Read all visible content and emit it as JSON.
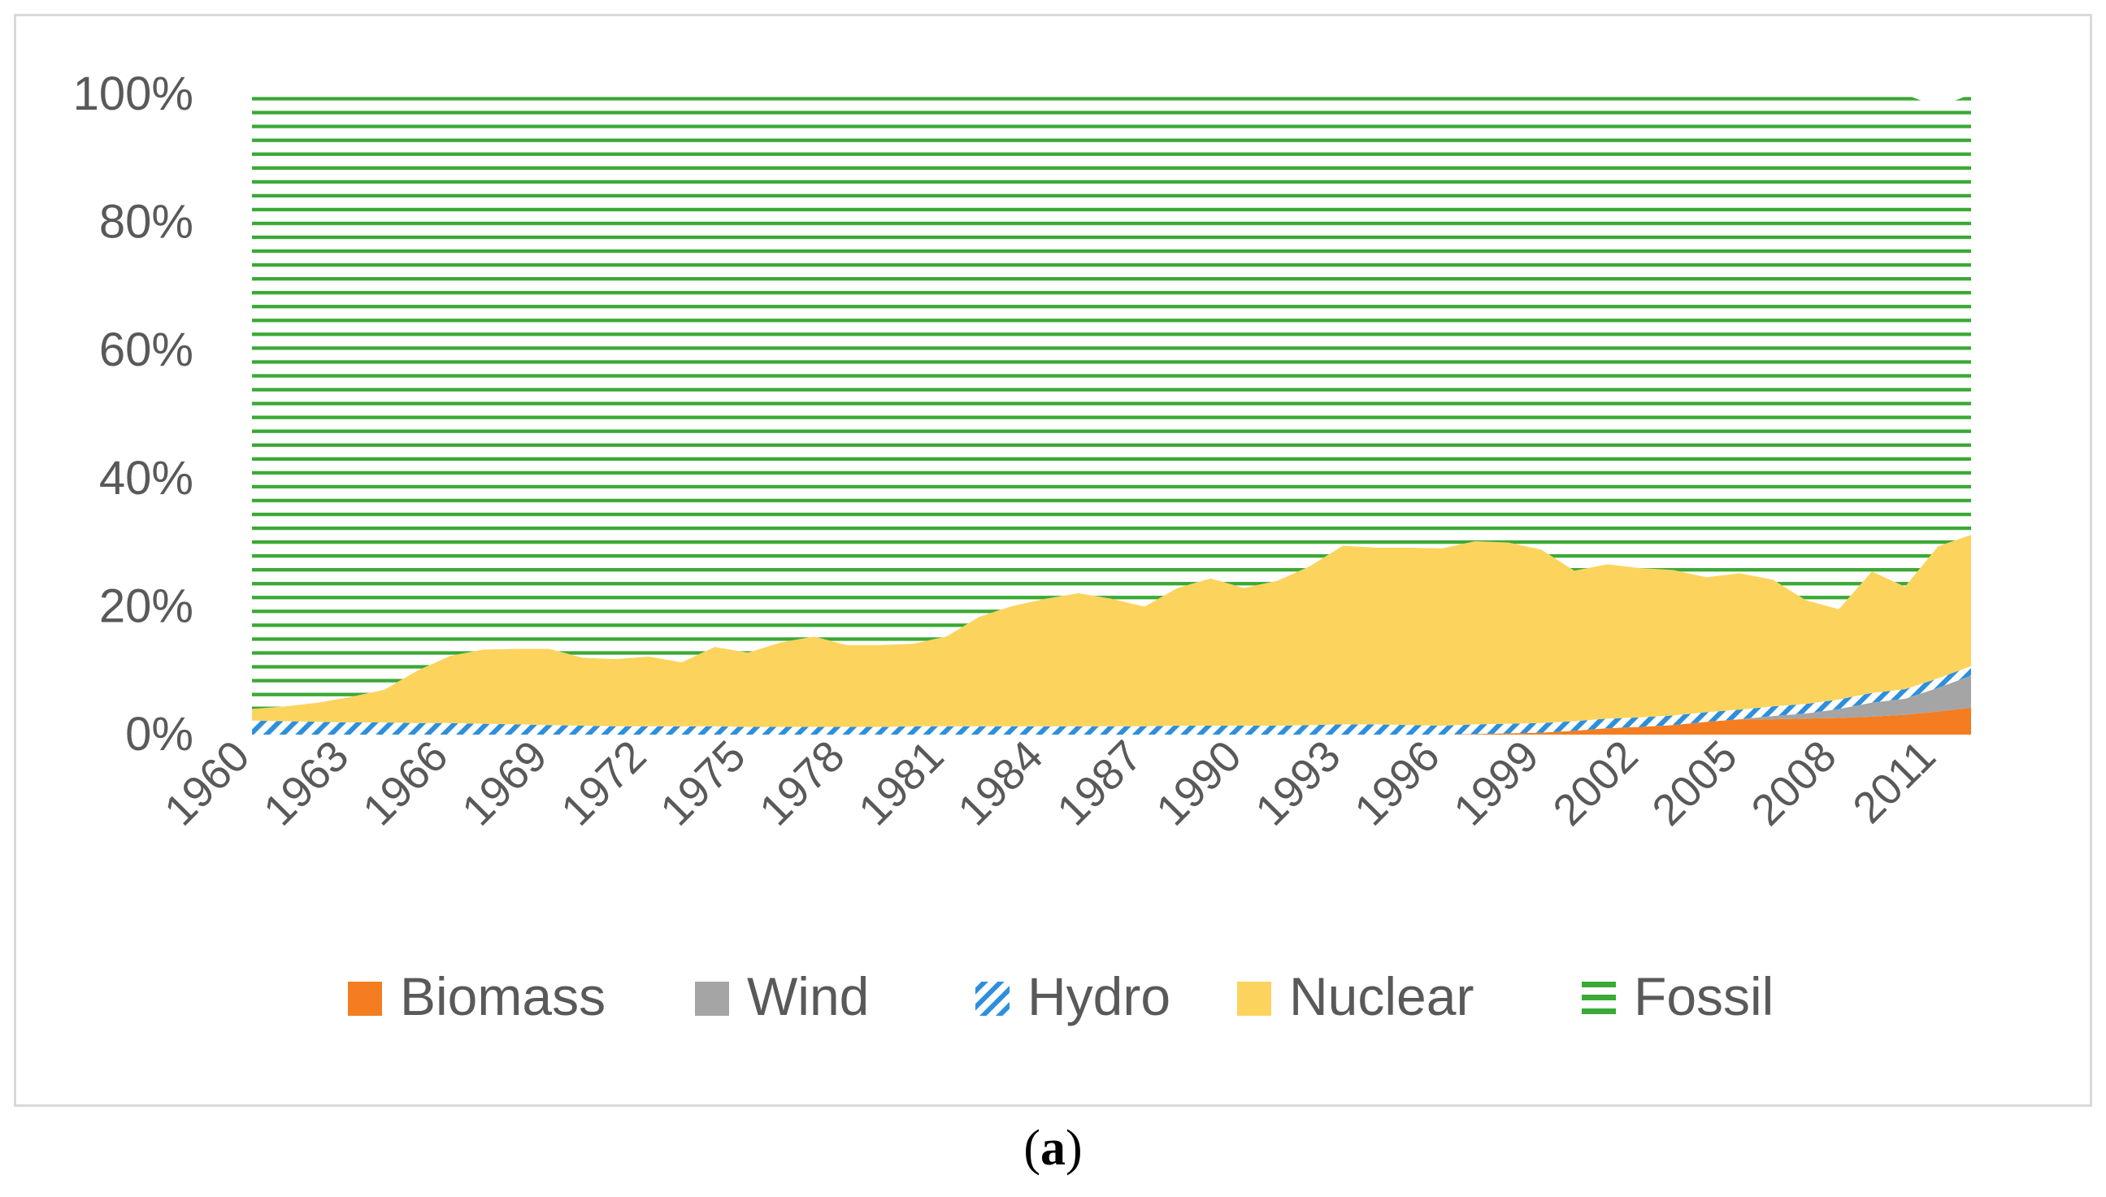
{
  "caption": {
    "open": "(",
    "letter": "a",
    "close": ")"
  },
  "colors": {
    "biomass": "#f47d21",
    "wind": "#a5a5a5",
    "hydro": "#2e8fdc",
    "nuclear": "#fcd45d",
    "fossil": "#3aa935",
    "axis_text": "#595959",
    "frame": "#d9d9d9"
  },
  "chart_data": {
    "type": "area",
    "stacked": true,
    "normalized": true,
    "title": "",
    "xlabel": "",
    "ylabel": "",
    "ylim": [
      0,
      100
    ],
    "y_ticks": [
      "0%",
      "20%",
      "40%",
      "60%",
      "80%",
      "100%"
    ],
    "x_tick_labels": [
      "1960",
      "1963",
      "1966",
      "1969",
      "1972",
      "1975",
      "1978",
      "1981",
      "1984",
      "1987",
      "1990",
      "1993",
      "1996",
      "1999",
      "2002",
      "2005",
      "2008",
      "2011"
    ],
    "legend_position": "bottom",
    "x": [
      1960,
      1961,
      1962,
      1963,
      1964,
      1965,
      1966,
      1967,
      1968,
      1969,
      1970,
      1971,
      1972,
      1973,
      1974,
      1975,
      1976,
      1977,
      1978,
      1979,
      1980,
      1981,
      1982,
      1983,
      1984,
      1985,
      1986,
      1987,
      1988,
      1989,
      1990,
      1991,
      1992,
      1993,
      1994,
      1995,
      1996,
      1997,
      1998,
      1999,
      2000,
      2001,
      2002,
      2003,
      2004,
      2005,
      2006,
      2007,
      2008,
      2009,
      2010,
      2011,
      2012
    ],
    "series": [
      {
        "name": "Biomass",
        "pattern": "solid",
        "values": [
          0,
          0,
          0,
          0,
          0,
          0,
          0,
          0,
          0,
          0,
          0,
          0,
          0,
          0,
          0,
          0,
          0,
          0,
          0,
          0,
          0,
          0,
          0,
          0,
          0,
          0,
          0,
          0,
          0,
          0,
          0,
          0,
          0,
          0,
          0,
          0,
          0,
          0.1,
          0.2,
          0.3,
          0.6,
          1.0,
          1.2,
          1.5,
          2.0,
          2.4,
          2.4,
          2.5,
          2.6,
          2.8,
          3.1,
          3.6,
          4.2
        ]
      },
      {
        "name": "Wind",
        "pattern": "solid",
        "values": [
          0,
          0,
          0,
          0,
          0,
          0,
          0,
          0,
          0,
          0,
          0,
          0,
          0,
          0,
          0,
          0,
          0,
          0,
          0,
          0,
          0,
          0,
          0,
          0,
          0,
          0,
          0,
          0,
          0,
          0,
          0,
          0,
          0,
          0,
          0,
          0,
          0,
          0,
          0,
          0,
          0,
          0,
          0,
          0,
          0,
          0,
          0.5,
          0.8,
          1.4,
          2.2,
          2.5,
          3.7,
          5.0
        ]
      },
      {
        "name": "Hydro",
        "pattern": "diagonal-stripes",
        "values": [
          2.2,
          2.1,
          2.0,
          1.9,
          1.9,
          1.8,
          1.8,
          1.7,
          1.6,
          1.5,
          1.4,
          1.3,
          1.3,
          1.3,
          1.3,
          1.2,
          1.2,
          1.2,
          1.2,
          1.2,
          1.3,
          1.3,
          1.3,
          1.3,
          1.3,
          1.3,
          1.3,
          1.3,
          1.4,
          1.4,
          1.4,
          1.4,
          1.5,
          1.6,
          1.6,
          1.5,
          1.4,
          1.5,
          1.5,
          1.5,
          1.5,
          1.5,
          1.5,
          1.5,
          1.5,
          1.5,
          1.5,
          1.5,
          1.5,
          1.5,
          1.5,
          1.5,
          1.5
        ]
      },
      {
        "name": "Nuclear",
        "pattern": "solid",
        "values": [
          1.8,
          2.3,
          3.0,
          4.0,
          5.1,
          8.2,
          10.5,
          11.6,
          11.8,
          11.9,
          10.6,
          10.5,
          10.9,
          10.0,
          12.4,
          11.6,
          13.2,
          14.1,
          12.8,
          12.8,
          12.9,
          14.0,
          17.1,
          18.8,
          19.9,
          20.8,
          19.9,
          18.7,
          21.5,
          23.0,
          21.5,
          22.6,
          24.8,
          27.9,
          27.6,
          27.7,
          27.7,
          28.6,
          28.3,
          27.1,
          23.5,
          24.1,
          23.3,
          22.7,
          21.1,
          21.3,
          19.8,
          16.2,
          14.1,
          19.0,
          16.0,
          20.6,
          20.5
        ]
      },
      {
        "name": "Fossil",
        "pattern": "horizontal-stripes",
        "values": [
          96.0,
          95.6,
          95.0,
          94.1,
          93.0,
          90.0,
          87.7,
          86.7,
          86.6,
          86.6,
          88.0,
          88.2,
          87.8,
          88.7,
          86.3,
          87.2,
          85.6,
          84.7,
          86.0,
          86.0,
          85.8,
          84.7,
          81.6,
          79.9,
          78.8,
          77.9,
          78.8,
          80.0,
          77.1,
          75.6,
          77.1,
          76.0,
          73.7,
          70.5,
          70.8,
          70.8,
          70.9,
          69.8,
          70.0,
          71.1,
          74.4,
          73.4,
          74.0,
          74.3,
          75.4,
          74.8,
          75.8,
          79.0,
          80.4,
          74.5,
          76.9,
          68.6,
          68.8
        ]
      }
    ]
  }
}
